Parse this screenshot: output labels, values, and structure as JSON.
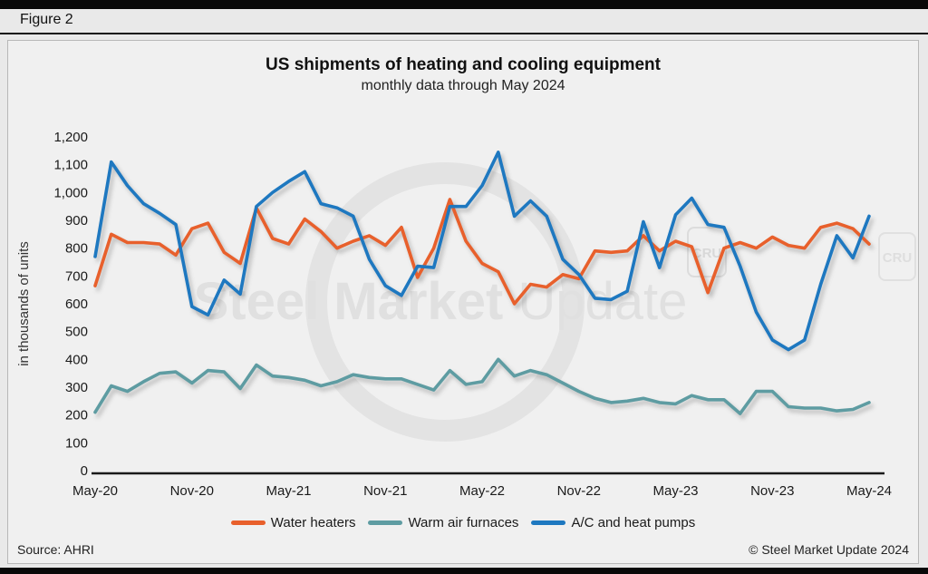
{
  "figure_label": "Figure 2",
  "header": {
    "title": "US shipments of heating and cooling equipment",
    "subtitle": "monthly data through May 2024"
  },
  "y_axis_label": "in thousands of units",
  "footer": {
    "source": "Source: AHRI",
    "copyright": "© Steel Market Update 2024"
  },
  "watermark": {
    "part1": "Steel Market",
    "part2": "Update",
    "logo": "CRU"
  },
  "colors": {
    "water_heaters": "#E8602C",
    "warm_air_furnaces": "#5E9CA2",
    "ac_heat_pumps": "#1E78C0",
    "axis": "#1a1a1a"
  },
  "chart_data": {
    "type": "line",
    "title": "US shipments of heating and cooling equipment",
    "subtitle": "monthly data through May 2024",
    "ylabel": "in thousands of units",
    "ylim": [
      0,
      1200
    ],
    "y_ticks": [
      0,
      100,
      200,
      300,
      400,
      500,
      600,
      700,
      800,
      900,
      1000,
      1100,
      1200
    ],
    "x_tick_labels": [
      "May-20",
      "Nov-20",
      "May-21",
      "Nov-21",
      "May-22",
      "Nov-22",
      "May-23",
      "Nov-23",
      "May-24"
    ],
    "x": [
      "May-20",
      "Jun-20",
      "Jul-20",
      "Aug-20",
      "Sep-20",
      "Oct-20",
      "Nov-20",
      "Dec-20",
      "Jan-21",
      "Feb-21",
      "Mar-21",
      "Apr-21",
      "May-21",
      "Jun-21",
      "Jul-21",
      "Aug-21",
      "Sep-21",
      "Oct-21",
      "Nov-21",
      "Dec-21",
      "Jan-22",
      "Feb-22",
      "Mar-22",
      "Apr-22",
      "May-22",
      "Jun-22",
      "Jul-22",
      "Aug-22",
      "Sep-22",
      "Oct-22",
      "Nov-22",
      "Dec-22",
      "Jan-23",
      "Feb-23",
      "Mar-23",
      "Apr-23",
      "May-23",
      "Jun-23",
      "Jul-23",
      "Aug-23",
      "Sep-23",
      "Oct-23",
      "Nov-23",
      "Dec-23",
      "Jan-24",
      "Feb-24",
      "Mar-24",
      "Apr-24",
      "May-24"
    ],
    "legend_position": "bottom",
    "grid": false,
    "series": [
      {
        "name": "Warm air furnaces",
        "color": "#5E9CA2",
        "values": [
          210,
          305,
          285,
          320,
          350,
          355,
          315,
          360,
          355,
          295,
          380,
          340,
          335,
          325,
          305,
          320,
          345,
          335,
          330,
          330,
          310,
          290,
          360,
          310,
          320,
          400,
          340,
          360,
          345,
          315,
          285,
          260,
          245,
          250,
          260,
          245,
          240,
          270,
          255,
          255,
          205,
          285,
          285,
          230,
          225,
          225,
          215,
          220,
          245
        ]
      },
      {
        "name": "Water heaters",
        "color": "#E8602C",
        "values": [
          665,
          850,
          820,
          820,
          815,
          775,
          870,
          890,
          785,
          745,
          945,
          835,
          815,
          905,
          860,
          800,
          825,
          845,
          810,
          875,
          695,
          800,
          975,
          825,
          745,
          715,
          600,
          670,
          660,
          705,
          690,
          790,
          785,
          790,
          845,
          790,
          825,
          805,
          640,
          800,
          820,
          800,
          840,
          810,
          800,
          875,
          890,
          870,
          815
        ]
      },
      {
        "name": "A/C and heat pumps",
        "color": "#1E78C0",
        "values": [
          770,
          1110,
          1025,
          960,
          925,
          885,
          590,
          560,
          685,
          635,
          950,
          1000,
          1040,
          1075,
          960,
          945,
          915,
          760,
          665,
          630,
          735,
          730,
          950,
          950,
          1025,
          1145,
          915,
          970,
          915,
          760,
          705,
          620,
          615,
          645,
          895,
          730,
          920,
          980,
          885,
          875,
          735,
          570,
          470,
          435,
          470,
          670,
          845,
          765,
          915
        ]
      }
    ],
    "legend_order": [
      "Water heaters",
      "Warm air furnaces",
      "A/C and heat pumps"
    ]
  }
}
